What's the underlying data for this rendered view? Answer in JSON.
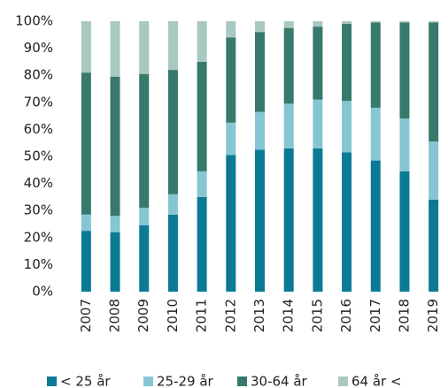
{
  "chart_data": {
    "type": "stacked_bar",
    "categories": [
      "2007",
      "2008",
      "2009",
      "2010",
      "2011",
      "2012",
      "2013",
      "2014",
      "2015",
      "2016",
      "2017",
      "2018",
      "2019"
    ],
    "series": [
      {
        "name": "< 25 år",
        "color": "#0b7a95",
        "values": [
          22.5,
          22,
          24.5,
          28.5,
          35,
          50.5,
          52.5,
          53,
          53,
          51.5,
          48.5,
          44.5,
          34
        ]
      },
      {
        "name": "25-29 år",
        "color": "#86c6d3",
        "values": [
          6,
          6,
          6.5,
          7.5,
          9.5,
          12,
          14,
          16.5,
          18,
          19,
          19.5,
          19.5,
          21.5
        ]
      },
      {
        "name": "30-64 år",
        "color": "#37796b",
        "values": [
          52.5,
          51.5,
          49.5,
          46,
          40.5,
          31.5,
          29.5,
          28,
          27,
          28.5,
          31.5,
          35.5,
          44
        ]
      },
      {
        "name": "64 år <",
        "color": "#a8c8c1",
        "values": [
          19,
          20.5,
          19.5,
          18,
          15,
          6,
          4,
          2.5,
          2,
          1,
          0.5,
          0.5,
          0.5
        ]
      }
    ],
    "ylim": [
      0,
      100
    ],
    "yticks": [
      {
        "value": 0,
        "label": "0%"
      },
      {
        "value": 10,
        "label": "10%"
      },
      {
        "value": 20,
        "label": "20%"
      },
      {
        "value": 30,
        "label": "30%"
      },
      {
        "value": 40,
        "label": "40%"
      },
      {
        "value": 50,
        "label": "50%"
      },
      {
        "value": 60,
        "label": "60%"
      },
      {
        "value": 70,
        "label": "70%"
      },
      {
        "value": 80,
        "label": "80%"
      },
      {
        "value": 90,
        "label": "90%"
      },
      {
        "value": 100,
        "label": "100%"
      }
    ],
    "legend": "bottom"
  }
}
